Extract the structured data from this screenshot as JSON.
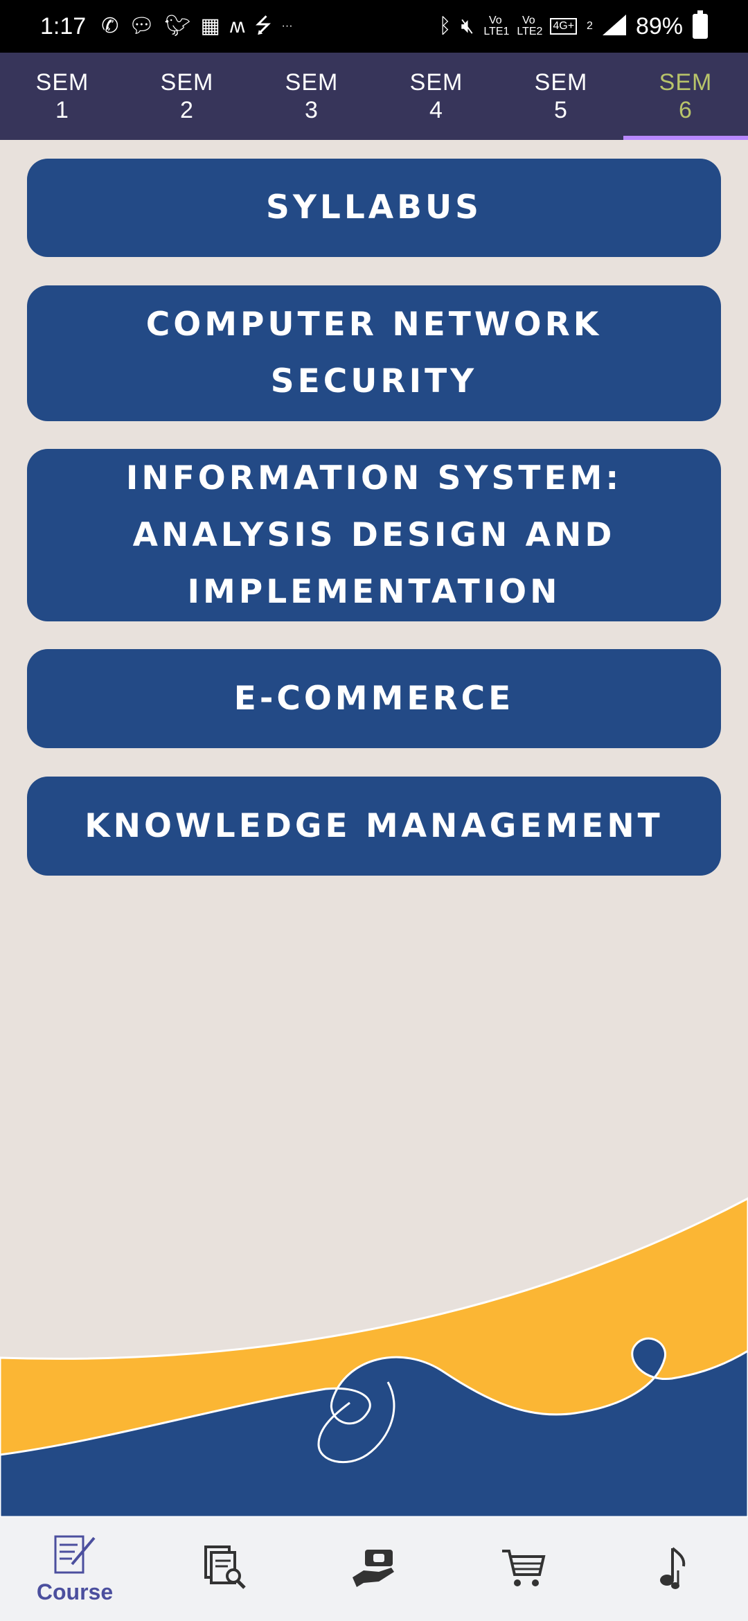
{
  "status_bar": {
    "time": "1:17",
    "battery": "89%",
    "lte1": "Vo LTE1",
    "lte2": "Vo LTE2",
    "network": "4G+",
    "sim": "2",
    "overflow": "···",
    "left_icons": [
      "whatsapp-icon",
      "messages-icon",
      "twitter-icon",
      "calendar-icon",
      "myntra-icon",
      "usb-icon"
    ],
    "right_icons": [
      "bluetooth-icon",
      "mute-vibrate-icon",
      "signal-icon",
      "battery-icon"
    ]
  },
  "tabs": [
    {
      "line1": "SEM",
      "line2": "1",
      "active": false
    },
    {
      "line1": "SEM",
      "line2": "2",
      "active": false
    },
    {
      "line1": "SEM",
      "line2": "3",
      "active": false
    },
    {
      "line1": "SEM",
      "line2": "4",
      "active": false
    },
    {
      "line1": "SEM",
      "line2": "5",
      "active": false
    },
    {
      "line1": "SEM",
      "line2": "6",
      "active": true
    }
  ],
  "courses": [
    {
      "label": "SYLLABUS"
    },
    {
      "label": "COMPUTER NETWORK SECURITY"
    },
    {
      "label": "INFORMATION SYSTEM: ANALYSIS DESIGN AND IMPLEMENTATION"
    },
    {
      "label": "E-COMMERCE"
    },
    {
      "label": "KNOWLEDGE MANAGEMENT"
    }
  ],
  "bottom_nav": [
    {
      "label": "Course",
      "icon": "course-icon",
      "active": true
    },
    {
      "label": "",
      "icon": "documents-search-icon",
      "active": false
    },
    {
      "label": "",
      "icon": "donate-hand-icon",
      "active": false
    },
    {
      "label": "",
      "icon": "cart-icon",
      "active": false
    },
    {
      "label": "",
      "icon": "music-icon",
      "active": false
    }
  ],
  "colors": {
    "background": "#e8e1dc",
    "tab_bar": "#37355a",
    "tab_active_text": "#b8c46a",
    "tab_indicator": "#b888ff",
    "button": "#234a86",
    "wave_yellow": "#fbb634",
    "wave_blue": "#234a86",
    "nav_active": "#4b4f9e"
  }
}
